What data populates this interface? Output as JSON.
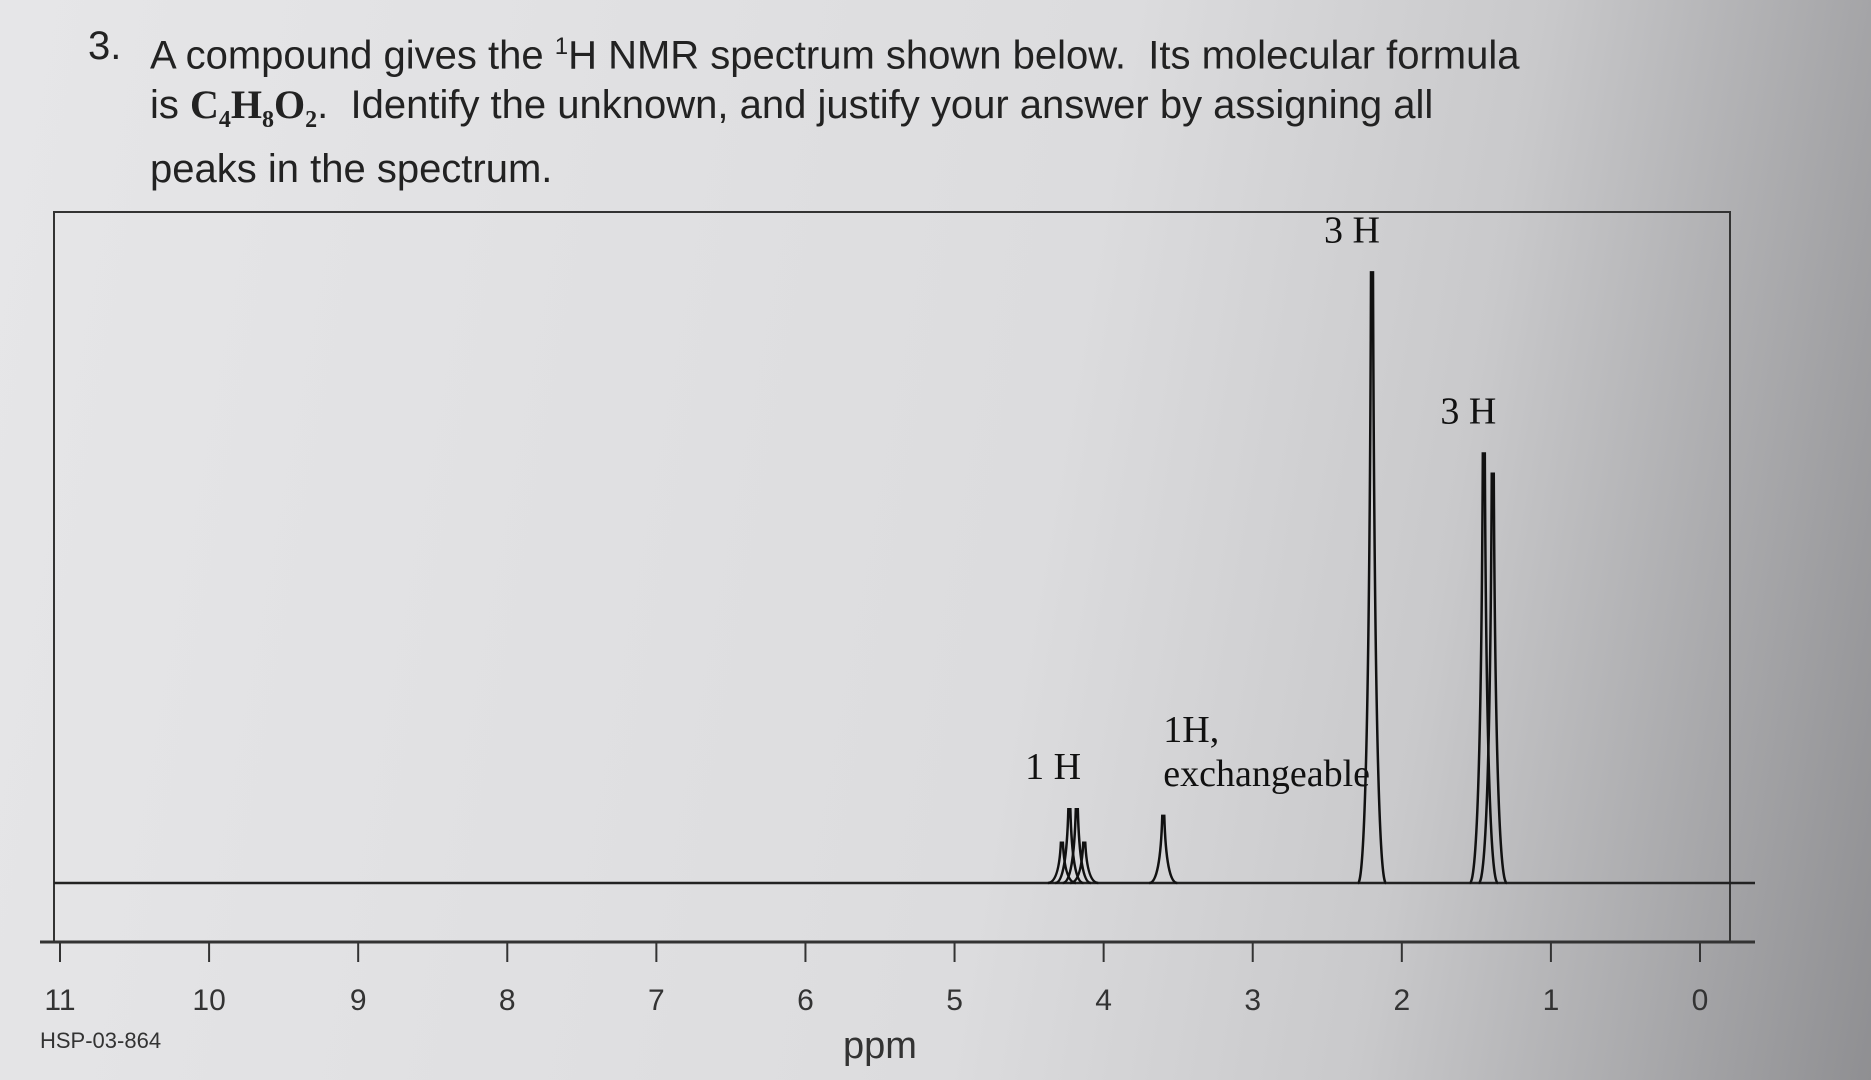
{
  "question": {
    "number": "3.",
    "text_1": "A compound gives the ",
    "sup": "1",
    "text_2": "H NMR spectrum shown below.  Its molecular formula",
    "text_3": "is ",
    "formula": [
      "C",
      "4",
      "H",
      "8",
      "O",
      "2"
    ],
    "text_4": ".  Identify the unknown, and justify your answer by assigning all",
    "text_5": "peaks in the spectrum."
  },
  "chart_data": {
    "type": "spectrum",
    "x_label": "ppm",
    "code": "HSP-03-864",
    "xlim": [
      11,
      0
    ],
    "xticks": [
      11,
      10,
      9,
      8,
      7,
      6,
      5,
      4,
      3,
      2,
      1,
      0
    ],
    "ylim": [
      0,
      100
    ],
    "peaks": [
      {
        "label": [
          "1 H"
        ],
        "ppm": [
          4.28,
          4.23,
          4.18,
          4.13
        ],
        "intensity": [
          6,
          11,
          11,
          6
        ]
      },
      {
        "label": [
          "1H,",
          "exchangeable"
        ],
        "ppm": [
          3.6
        ],
        "intensity": [
          10
        ]
      },
      {
        "label": [
          "3 H"
        ],
        "ppm": [
          2.2
        ],
        "intensity": [
          91
        ]
      },
      {
        "label": [
          "3 H"
        ],
        "ppm": [
          1.45,
          1.39
        ],
        "intensity": [
          64,
          61
        ]
      }
    ]
  }
}
